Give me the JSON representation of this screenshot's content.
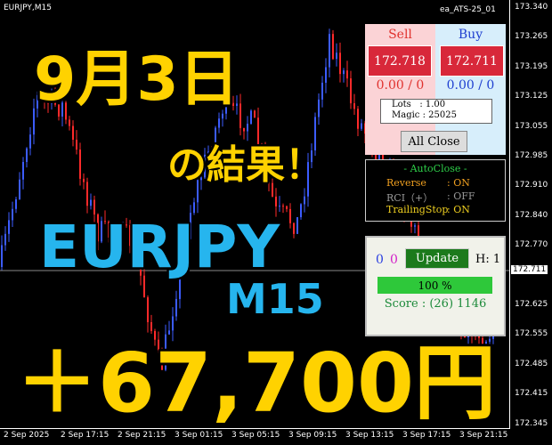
{
  "header": {
    "symbol": "EURJPY,M15",
    "expert": "ea_ATS-25_01"
  },
  "price_labels": [
    "173.340",
    "173.265",
    "173.195",
    "173.125",
    "173.055",
    "172.985",
    "172.910",
    "172.840",
    "172.770",
    "172.625",
    "172.555",
    "172.485",
    "172.415",
    "172.345"
  ],
  "current_price": "172.711",
  "time_labels": [
    "2 Sep 2025",
    "2 Sep 17:15",
    "2 Sep 21:15",
    "3 Sep 01:15",
    "3 Sep 05:15",
    "3 Sep 09:15",
    "3 Sep 13:15",
    "3 Sep 17:15",
    "3 Sep 21:15"
  ],
  "overlay": {
    "date": "9月3日",
    "result": "の結果！",
    "pair": "EURJPY",
    "timeframe": "M15",
    "profit": "＋67,700円"
  },
  "trade_panel": {
    "sell": {
      "label": "Sell",
      "price": "172.718",
      "pl": "0.00 / 0"
    },
    "buy": {
      "label": "Buy",
      "price": "172.711",
      "pl": "0.00 / 0"
    },
    "lots": "Lots   : 1.00",
    "magic": "Magic : 25025",
    "close_all": "All Close"
  },
  "autoclose": {
    "title": "- AutoClose -",
    "rows": [
      {
        "name": "Reverse",
        "value": ": ON"
      },
      {
        "name": "RCI（+）",
        "value": ": OFF"
      },
      {
        "name": "TrailingStop",
        "value": ": ON"
      }
    ]
  },
  "status_panel": {
    "count_a": "0",
    "count_b": "0",
    "update": "Update",
    "h": "H: 1",
    "progress": "100 %",
    "score": "Score : (26) 1146"
  }
}
